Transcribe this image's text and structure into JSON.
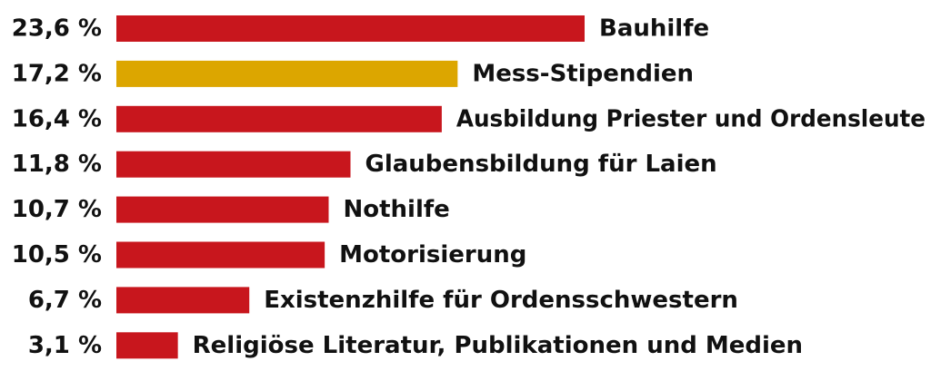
{
  "chart_data": {
    "type": "bar",
    "orientation": "horizontal",
    "title": "",
    "xlabel": "",
    "ylabel": "",
    "categories": [
      "Bauhilfe",
      "Mess-Stipendien",
      "Ausbildung Priester und Ordensleute",
      "Glaubensbildung für Laien",
      "Nothilfe",
      "Motorisierung",
      "Existenzhilfe für Ordensschwestern",
      "Religiöse Literatur, Publikationen und Medien"
    ],
    "values": [
      23.6,
      17.2,
      16.4,
      11.8,
      10.7,
      10.5,
      6.7,
      3.1
    ],
    "value_labels": [
      "23,6 %",
      "17,2 %",
      "16,4 %",
      "11,8 %",
      "10,7 %",
      "10,5 %",
      "6,7 %",
      "3,1 %"
    ],
    "colors": [
      "#c8161d",
      "#dca600",
      "#c8161d",
      "#c8161d",
      "#c8161d",
      "#c8161d",
      "#c8161d",
      "#c8161d"
    ],
    "xlim": [
      0,
      23.6
    ],
    "grid": false,
    "legend": "none"
  }
}
